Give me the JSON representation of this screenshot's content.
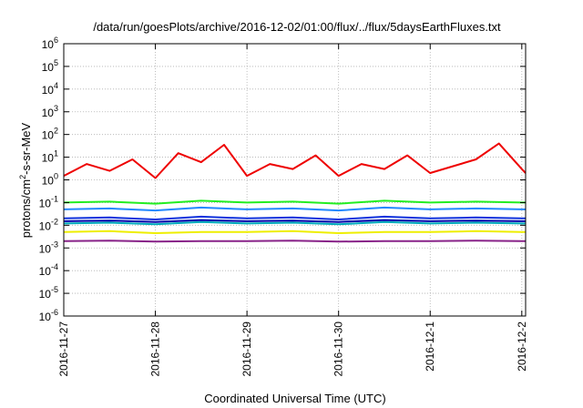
{
  "chart_data": {
    "type": "line",
    "title": "/data/run/goesPlots/archive/2016-12-02/01:00/flux/../flux/5daysEarthFluxes.txt",
    "xlabel": "Coordinated Universal Time (UTC)",
    "ylabel": "protons/cm²-s-sr-MeV",
    "ylabel_parts": {
      "pre": "protons/cm",
      "sup": "2",
      "post": "-s-sr-MeV"
    },
    "y_scale": "log",
    "ylim": [
      1e-06,
      1000000.0
    ],
    "y_ticks": [
      {
        "base": "10",
        "exp": "-6",
        "value": 1e-06
      },
      {
        "base": "10",
        "exp": "-5",
        "value": 1e-05
      },
      {
        "base": "10",
        "exp": "-4",
        "value": 0.0001
      },
      {
        "base": "10",
        "exp": "-3",
        "value": 0.001
      },
      {
        "base": "10",
        "exp": "-2",
        "value": 0.01
      },
      {
        "base": "10",
        "exp": "-1",
        "value": 0.1
      },
      {
        "base": "10",
        "exp": "0",
        "value": 1
      },
      {
        "base": "10",
        "exp": "1",
        "value": 10
      },
      {
        "base": "10",
        "exp": "2",
        "value": 100
      },
      {
        "base": "10",
        "exp": "3",
        "value": 1000
      },
      {
        "base": "10",
        "exp": "4",
        "value": 10000
      },
      {
        "base": "10",
        "exp": "5",
        "value": 100000
      },
      {
        "base": "10",
        "exp": "6",
        "value": 1000000
      }
    ],
    "xlim": [
      "2016-11-27T00:00",
      "2016-12-02T01:00"
    ],
    "x_ticks": [
      {
        "label": "2016-11-27",
        "date": "2016-11-27T00:00"
      },
      {
        "label": "2016-11-28",
        "date": "2016-11-28T00:00"
      },
      {
        "label": "2016-11-29",
        "date": "2016-11-29T00:00"
      },
      {
        "label": "2016-11-30",
        "date": "2016-11-30T00:00"
      },
      {
        "label": "2016-12-1",
        "date": "2016-12-01T00:00"
      },
      {
        "label": "2016-12-2",
        "date": "2016-12-02T00:00"
      }
    ],
    "grid": true,
    "series": [
      {
        "color": "#ee0000",
        "x": [
          "2016-11-27T00:00",
          "2016-11-27T06:00",
          "2016-11-27T12:00",
          "2016-11-27T18:00",
          "2016-11-28T00:00",
          "2016-11-28T06:00",
          "2016-11-28T12:00",
          "2016-11-28T18:00",
          "2016-11-29T00:00",
          "2016-11-29T06:00",
          "2016-11-29T12:00",
          "2016-11-29T18:00",
          "2016-11-30T00:00",
          "2016-11-30T06:00",
          "2016-11-30T12:00",
          "2016-11-30T18:00",
          "2016-12-01T00:00",
          "2016-12-01T06:00",
          "2016-12-01T12:00",
          "2016-12-01T18:00",
          "2016-12-02T00:00",
          "2016-12-02T01:00"
        ],
        "values": [
          1.5,
          5,
          2.5,
          8,
          1.2,
          15,
          6,
          35,
          1.5,
          5,
          3,
          12,
          1.5,
          5,
          3,
          12,
          2,
          4,
          8,
          40,
          3,
          2
        ]
      },
      {
        "color": "#22ee22",
        "x": [
          "2016-11-27T00:00",
          "2016-11-27T12:00",
          "2016-11-28T00:00",
          "2016-11-28T12:00",
          "2016-11-29T00:00",
          "2016-11-29T12:00",
          "2016-11-30T00:00",
          "2016-11-30T12:00",
          "2016-12-01T00:00",
          "2016-12-01T12:00",
          "2016-12-02T00:00",
          "2016-12-02T01:00"
        ],
        "values": [
          0.1,
          0.11,
          0.09,
          0.12,
          0.1,
          0.11,
          0.09,
          0.12,
          0.1,
          0.11,
          0.1,
          0.1
        ]
      },
      {
        "color": "#2288ff",
        "x": [
          "2016-11-27T00:00",
          "2016-11-27T12:00",
          "2016-11-28T00:00",
          "2016-11-28T12:00",
          "2016-11-29T00:00",
          "2016-11-29T12:00",
          "2016-11-30T00:00",
          "2016-11-30T12:00",
          "2016-12-01T00:00",
          "2016-12-01T12:00",
          "2016-12-02T00:00",
          "2016-12-02T01:00"
        ],
        "values": [
          0.05,
          0.055,
          0.045,
          0.06,
          0.05,
          0.055,
          0.045,
          0.06,
          0.05,
          0.055,
          0.05,
          0.05
        ]
      },
      {
        "color": "#1133dd",
        "x": [
          "2016-11-27T00:00",
          "2016-11-27T12:00",
          "2016-11-28T00:00",
          "2016-11-28T12:00",
          "2016-11-29T00:00",
          "2016-11-29T12:00",
          "2016-11-30T00:00",
          "2016-11-30T12:00",
          "2016-12-01T00:00",
          "2016-12-01T12:00",
          "2016-12-02T00:00",
          "2016-12-02T01:00"
        ],
        "values": [
          0.02,
          0.022,
          0.018,
          0.024,
          0.02,
          0.022,
          0.018,
          0.024,
          0.02,
          0.022,
          0.02,
          0.02
        ]
      },
      {
        "color": "#00aabb",
        "x": [
          "2016-11-27T00:00",
          "2016-11-27T12:00",
          "2016-11-28T00:00",
          "2016-11-28T12:00",
          "2016-11-29T00:00",
          "2016-11-29T12:00",
          "2016-11-30T00:00",
          "2016-11-30T12:00",
          "2016-12-01T00:00",
          "2016-12-01T12:00",
          "2016-12-02T00:00",
          "2016-12-02T01:00"
        ],
        "values": [
          0.012,
          0.013,
          0.011,
          0.014,
          0.012,
          0.013,
          0.011,
          0.014,
          0.012,
          0.013,
          0.012,
          0.012
        ]
      },
      {
        "color": "#0000aa",
        "x": [
          "2016-11-27T00:00",
          "2016-11-27T12:00",
          "2016-11-28T00:00",
          "2016-11-28T12:00",
          "2016-11-29T00:00",
          "2016-11-29T12:00",
          "2016-11-30T00:00",
          "2016-11-30T12:00",
          "2016-12-01T00:00",
          "2016-12-01T12:00",
          "2016-12-02T00:00",
          "2016-12-02T01:00"
        ],
        "values": [
          0.015,
          0.016,
          0.014,
          0.017,
          0.015,
          0.016,
          0.014,
          0.017,
          0.015,
          0.016,
          0.015,
          0.015
        ]
      },
      {
        "color": "#eeee00",
        "x": [
          "2016-11-27T00:00",
          "2016-11-27T12:00",
          "2016-11-28T00:00",
          "2016-11-28T12:00",
          "2016-11-29T00:00",
          "2016-11-29T12:00",
          "2016-11-30T00:00",
          "2016-11-30T12:00",
          "2016-12-01T00:00",
          "2016-12-01T12:00",
          "2016-12-02T00:00",
          "2016-12-02T01:00"
        ],
        "values": [
          0.005,
          0.0055,
          0.0045,
          0.005,
          0.005,
          0.0055,
          0.0045,
          0.005,
          0.005,
          0.0055,
          0.005,
          0.005
        ]
      },
      {
        "color": "#882288",
        "x": [
          "2016-11-27T00:00",
          "2016-11-27T12:00",
          "2016-11-28T00:00",
          "2016-11-28T12:00",
          "2016-11-29T00:00",
          "2016-11-29T12:00",
          "2016-11-30T00:00",
          "2016-11-30T12:00",
          "2016-12-01T00:00",
          "2016-12-01T12:00",
          "2016-12-02T00:00",
          "2016-12-02T01:00"
        ],
        "values": [
          0.002,
          0.0021,
          0.0019,
          0.002,
          0.002,
          0.0021,
          0.0019,
          0.002,
          0.002,
          0.0021,
          0.002,
          0.002
        ]
      }
    ]
  }
}
